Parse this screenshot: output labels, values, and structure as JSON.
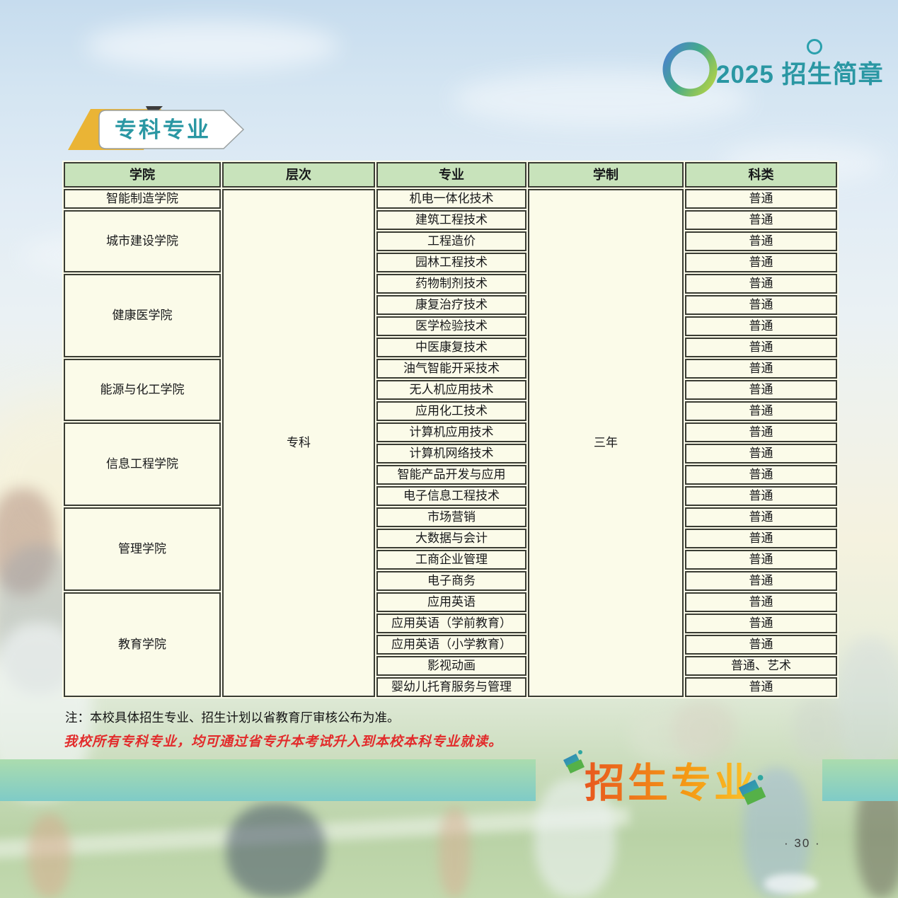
{
  "header": {
    "year": "2025",
    "title": "招生简章"
  },
  "section": {
    "title": "专科专业"
  },
  "table": {
    "columns": [
      "学院",
      "层次",
      "专业",
      "学制",
      "科类"
    ],
    "level": "专科",
    "duration": "三年",
    "colleges": [
      {
        "name": "智能制造学院",
        "majors": [
          {
            "major": "机电一体化技术",
            "category": "普通"
          }
        ]
      },
      {
        "name": "城市建设学院",
        "majors": [
          {
            "major": "建筑工程技术",
            "category": "普通"
          },
          {
            "major": "工程造价",
            "category": "普通"
          },
          {
            "major": "园林工程技术",
            "category": "普通"
          }
        ]
      },
      {
        "name": "健康医学院",
        "majors": [
          {
            "major": "药物制剂技术",
            "category": "普通"
          },
          {
            "major": "康复治疗技术",
            "category": "普通"
          },
          {
            "major": "医学检验技术",
            "category": "普通"
          },
          {
            "major": "中医康复技术",
            "category": "普通"
          }
        ]
      },
      {
        "name": "能源与化工学院",
        "majors": [
          {
            "major": "油气智能开采技术",
            "category": "普通"
          },
          {
            "major": "无人机应用技术",
            "category": "普通"
          },
          {
            "major": "应用化工技术",
            "category": "普通"
          }
        ]
      },
      {
        "name": "信息工程学院",
        "majors": [
          {
            "major": "计算机应用技术",
            "category": "普通"
          },
          {
            "major": "计算机网络技术",
            "category": "普通"
          },
          {
            "major": "智能产品开发与应用",
            "category": "普通"
          },
          {
            "major": "电子信息工程技术",
            "category": "普通"
          }
        ]
      },
      {
        "name": "管理学院",
        "majors": [
          {
            "major": "市场营销",
            "category": "普通"
          },
          {
            "major": "大数据与会计",
            "category": "普通"
          },
          {
            "major": "工商企业管理",
            "category": "普通"
          },
          {
            "major": "电子商务",
            "category": "普通"
          }
        ]
      },
      {
        "name": "教育学院",
        "majors": [
          {
            "major": "应用英语",
            "category": "普通"
          },
          {
            "major": "应用英语（学前教育）",
            "category": "普通"
          },
          {
            "major": "应用英语（小学教育）",
            "category": "普通"
          },
          {
            "major": "影视动画",
            "category": "普通、艺术"
          },
          {
            "major": "婴幼儿托育服务与管理",
            "category": "普通"
          }
        ]
      }
    ]
  },
  "notes": {
    "approval": "注：本校具体招生专业、招生计划以省教育厅审核公布为准。",
    "upgrade": "我校所有专科专业，均可通过省专升本考试升入到本校本科专业就读。"
  },
  "footer": {
    "banner_title": "招生专业",
    "page_number": "· 30 ·"
  },
  "colors": {
    "teal": "#2a97a3",
    "table_header_bg": "#c8e3bb",
    "cell_bg": "#fbfbe9",
    "border": "#3a3c33",
    "note_red": "#e22b2b",
    "band_top": "#abdcae",
    "band_bottom": "#7fcbc7",
    "banner_orange_start": "#e8581f",
    "banner_orange_end": "#fbc52c",
    "badge_yellow": "#eab435"
  }
}
